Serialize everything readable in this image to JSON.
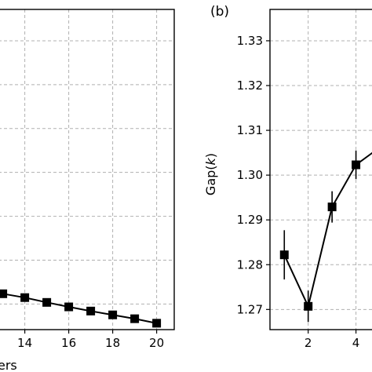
{
  "chart_data": [
    {
      "type": "line",
      "panel_label": "",
      "xlabel": "ers",
      "ylabel": "",
      "xlim": [
        12.8,
        20.8
      ],
      "ylim": [
        0,
        1
      ],
      "xticks": [
        14,
        16,
        18,
        20
      ],
      "xtick_labels": [
        "14",
        "16",
        "18",
        "20"
      ],
      "grid": true,
      "x": [
        13,
        14,
        15,
        16,
        17,
        18,
        19,
        20
      ],
      "y": [
        0.112,
        0.1,
        0.085,
        0.071,
        0.058,
        0.046,
        0.034,
        0.02
      ],
      "yerr": [
        0,
        0,
        0,
        0,
        0,
        0,
        0,
        0
      ],
      "marker": "square",
      "color": "#000000"
    },
    {
      "type": "line",
      "panel_label": "(b)",
      "xlabel": "",
      "ylabel_pre": "Gap(",
      "ylabel_k": "k",
      "ylabel_post": ")",
      "xlim": [
        0.4,
        5.0
      ],
      "ylim": [
        1.2655,
        1.337
      ],
      "xticks": [
        2,
        4
      ],
      "xtick_labels": [
        "2",
        "4"
      ],
      "yticks": [
        1.27,
        1.28,
        1.29,
        1.3,
        1.31,
        1.32,
        1.33
      ],
      "ytick_labels": [
        "1.27",
        "1.28",
        "1.29",
        "1.30",
        "1.31",
        "1.32",
        "1.33"
      ],
      "grid": true,
      "x": [
        1,
        2,
        3,
        4,
        5
      ],
      "y": [
        1.2822,
        1.2707,
        1.2929,
        1.3023,
        1.3062
      ],
      "yerr": [
        0.0055,
        0.0035,
        0.0035,
        0.0032,
        0.003
      ],
      "marker": "square",
      "color": "#000000"
    }
  ]
}
